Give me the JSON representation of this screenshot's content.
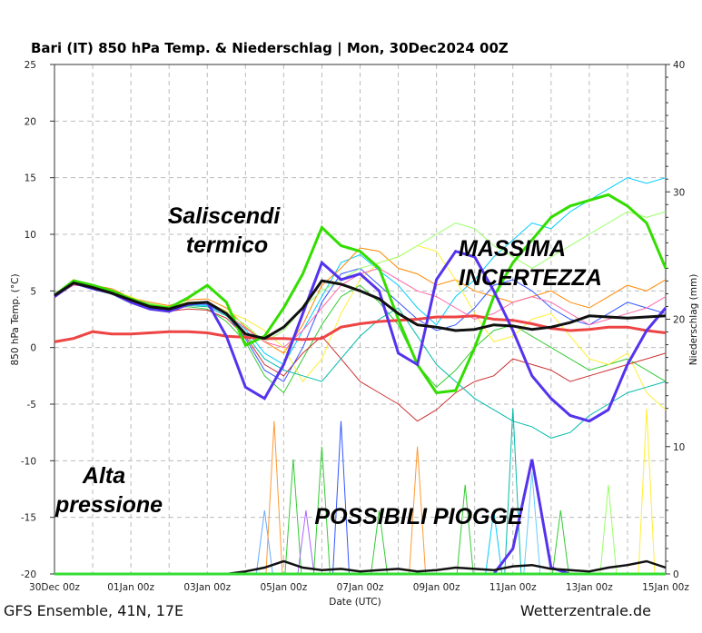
{
  "chart_data": {
    "type": "line",
    "title": "Bari  (IT)  850 hPa Temp. & Niederschlag | Mon, 30Dec2024 00Z",
    "xlabel": "Date (UTC)",
    "ylabel": "850 hPa Temp. (°C)",
    "y2label": "Niederschlag (mm)",
    "footer_left": "GFS Ensemble, 41N, 17E",
    "footer_right": "Wetterzentrale.de",
    "xlim": [
      0,
      384
    ],
    "ylim": [
      -20,
      25
    ],
    "y2lim": [
      0,
      40
    ],
    "x_ticks": [
      {
        "hour": 0,
        "label": "30Dec 00z"
      },
      {
        "hour": 48,
        "label": "01Jan 00z"
      },
      {
        "hour": 96,
        "label": "03Jan 00z"
      },
      {
        "hour": 144,
        "label": "05Jan 00z"
      },
      {
        "hour": 192,
        "label": "07Jan 00z"
      },
      {
        "hour": 240,
        "label": "09Jan 00z"
      },
      {
        "hour": 288,
        "label": "11Jan 00z"
      },
      {
        "hour": 336,
        "label": "13Jan 00z"
      },
      {
        "hour": 384,
        "label": "15Jan 00z"
      }
    ],
    "y_ticks": [
      25,
      20,
      15,
      10,
      5,
      0,
      -5,
      -10,
      -15,
      -20
    ],
    "y2_ticks": [
      40,
      30,
      20,
      10,
      0
    ],
    "x_hours": [
      0,
      12,
      24,
      36,
      48,
      60,
      72,
      84,
      96,
      108,
      120,
      132,
      144,
      156,
      168,
      180,
      192,
      204,
      216,
      228,
      240,
      252,
      264,
      276,
      288,
      300,
      312,
      324,
      336,
      348,
      360,
      372,
      384
    ],
    "ensemble_temperature": [
      {
        "color": "#00ccff",
        "values": [
          4.5,
          5.6,
          5.4,
          4.9,
          4.3,
          3.9,
          3.3,
          3.8,
          3.7,
          3.0,
          1.6,
          -0.5,
          -1.5,
          1.5,
          4.5,
          7.5,
          8.2,
          6.8,
          5.5,
          3.5,
          2.0,
          4.5,
          6.0,
          8.0,
          9.5,
          11.0,
          10.5,
          12.0,
          13.0,
          14.0,
          15.0,
          14.5,
          15.0
        ]
      },
      {
        "color": "#33cc33",
        "values": [
          4.6,
          5.8,
          5.3,
          4.7,
          4.1,
          3.6,
          3.5,
          3.6,
          3.4,
          2.3,
          0.5,
          -2.5,
          -4.0,
          -1.0,
          2.0,
          4.5,
          5.5,
          4.0,
          2.0,
          -1.5,
          -3.5,
          -2.0,
          0.0,
          1.5,
          2.0,
          1.0,
          0.0,
          -1.0,
          -2.0,
          -1.5,
          -1.0,
          -2.0,
          -3.0
        ]
      },
      {
        "color": "#ff8800",
        "values": [
          4.7,
          6.0,
          5.5,
          5.2,
          4.4,
          4.0,
          3.7,
          4.2,
          4.3,
          3.5,
          1.8,
          0.5,
          -0.5,
          2.0,
          5.5,
          7.0,
          8.8,
          8.5,
          7.0,
          6.5,
          5.5,
          6.0,
          5.0,
          4.5,
          4.0,
          4.5,
          5.0,
          4.0,
          3.5,
          4.5,
          5.5,
          5.0,
          6.0
        ]
      },
      {
        "color": "#ffee33",
        "values": [
          4.5,
          5.7,
          5.5,
          5.0,
          4.5,
          3.8,
          3.6,
          4.0,
          4.0,
          3.2,
          2.5,
          1.5,
          0.0,
          -3.0,
          -1.0,
          3.0,
          6.0,
          7.5,
          8.0,
          9.0,
          8.5,
          6.0,
          3.0,
          0.5,
          1.0,
          2.5,
          3.0,
          1.0,
          -1.0,
          -1.5,
          -0.5,
          -4.0,
          -5.5
        ]
      },
      {
        "color": "#cc3333",
        "values": [
          4.4,
          5.6,
          5.2,
          4.8,
          4.0,
          3.5,
          3.2,
          3.4,
          3.3,
          2.6,
          1.0,
          -1.5,
          -2.5,
          -0.5,
          1.0,
          -1.0,
          -3.0,
          -4.0,
          -5.0,
          -6.5,
          -5.5,
          -4.0,
          -3.0,
          -2.5,
          -1.0,
          -1.5,
          -2.0,
          -3.0,
          -2.5,
          -2.0,
          -1.5,
          -1.0,
          -0.5
        ]
      },
      {
        "color": "#3355ff",
        "values": [
          4.6,
          5.7,
          5.3,
          4.8,
          4.2,
          3.7,
          3.3,
          3.9,
          3.8,
          2.9,
          0.8,
          -2.0,
          -3.0,
          0.0,
          4.0,
          6.5,
          7.0,
          5.5,
          4.0,
          2.5,
          1.5,
          2.0,
          3.5,
          5.5,
          6.0,
          5.0,
          3.5,
          2.5,
          2.0,
          3.0,
          4.0,
          3.5,
          3.0
        ]
      },
      {
        "color": "#99ff66",
        "values": [
          4.5,
          5.8,
          5.4,
          5.0,
          4.3,
          3.9,
          3.6,
          3.9,
          3.9,
          3.1,
          2.0,
          0.5,
          1.5,
          3.5,
          5.0,
          6.0,
          7.0,
          7.5,
          8.0,
          9.0,
          10.0,
          11.0,
          10.5,
          9.0,
          8.0,
          7.0,
          8.0,
          9.0,
          10.0,
          11.0,
          12.0,
          11.5,
          12.0
        ]
      },
      {
        "color": "#00bbaa",
        "values": [
          4.5,
          5.7,
          5.2,
          4.9,
          4.2,
          3.7,
          3.4,
          3.7,
          3.6,
          2.8,
          1.2,
          -1.0,
          -2.0,
          -2.5,
          -3.0,
          -1.0,
          1.0,
          2.5,
          3.5,
          1.0,
          -1.5,
          -3.0,
          -4.5,
          -5.5,
          -6.5,
          -7.0,
          -8.0,
          -7.5,
          -6.0,
          -5.0,
          -4.0,
          -3.5,
          -3.0
        ]
      },
      {
        "color": "#ff66aa",
        "values": [
          4.5,
          5.5,
          5.4,
          5.0,
          4.1,
          3.6,
          3.5,
          3.8,
          3.9,
          3.0,
          1.7,
          0.5,
          0.0,
          1.5,
          3.5,
          5.5,
          6.5,
          7.0,
          6.0,
          5.0,
          4.5,
          3.5,
          2.5,
          3.0,
          4.0,
          4.5,
          4.0,
          3.0,
          2.0,
          2.5,
          3.0,
          3.5,
          4.5
        ]
      }
    ],
    "control_run": {
      "color": "#33dd00",
      "values": [
        4.6,
        5.9,
        5.5,
        5.0,
        4.3,
        3.7,
        3.5,
        4.4,
        5.5,
        4.0,
        0.2,
        1.0,
        3.5,
        6.5,
        10.6,
        9.0,
        8.5,
        7.0,
        2.5,
        -1.5,
        -4.0,
        -3.8,
        0.0,
        4.5,
        7.5,
        9.5,
        11.5,
        12.5,
        13.0,
        13.5,
        12.5,
        11.0,
        7.0
      ]
    },
    "operational_run": {
      "color": "#5533ee",
      "values": [
        4.5,
        5.7,
        5.2,
        4.8,
        4.0,
        3.4,
        3.2,
        3.8,
        4.0,
        1.0,
        -3.5,
        -4.5,
        -1.5,
        3.0,
        7.5,
        6.0,
        6.5,
        5.0,
        -0.5,
        -1.5,
        6.0,
        8.5,
        8.0,
        5.0,
        1.5,
        -2.5,
        -4.5,
        -6.0,
        -6.5,
        -5.5,
        -1.5,
        1.5,
        3.5
      ]
    },
    "ensemble_mean": {
      "color": "#111111",
      "values": [
        4.6,
        5.7,
        5.3,
        4.8,
        4.2,
        3.6,
        3.4,
        3.9,
        4.0,
        3.0,
        1.2,
        0.8,
        1.8,
        3.5,
        5.9,
        5.6,
        5.0,
        4.3,
        3.0,
        2.0,
        1.8,
        1.5,
        1.6,
        2.0,
        1.9,
        1.6,
        1.8,
        2.2,
        2.8,
        2.7,
        2.6,
        2.7,
        2.8
      ]
    },
    "climatology": {
      "color": "#ee4444",
      "values": [
        0.5,
        0.8,
        1.4,
        1.2,
        1.2,
        1.3,
        1.4,
        1.4,
        1.3,
        1.0,
        0.9,
        0.8,
        0.8,
        0.7,
        0.8,
        1.8,
        2.1,
        2.3,
        2.4,
        2.5,
        2.7,
        2.7,
        2.8,
        2.5,
        2.4,
        2.1,
        1.7,
        1.5,
        1.6,
        1.8,
        1.8,
        1.5,
        1.3
      ]
    },
    "precipitation_mean": {
      "color": "#111111",
      "values": [
        0,
        0,
        0,
        0,
        0,
        0,
        0,
        0,
        0,
        0,
        0.2,
        0.5,
        1.0,
        0.5,
        0.3,
        0.4,
        0.2,
        0.3,
        0.4,
        0.2,
        0.3,
        0.5,
        0.4,
        0.3,
        0.6,
        0.7,
        0.4,
        0.3,
        0.2,
        0.5,
        0.7,
        1.0,
        0.5
      ]
    },
    "precipitation_operational": {
      "color": "#5533ee",
      "values": [
        0,
        0,
        0,
        0,
        0,
        0,
        0,
        0,
        0,
        0,
        0,
        0,
        0,
        0,
        0,
        0,
        0,
        0,
        0,
        0,
        0,
        0,
        0,
        0,
        2.0,
        9.0,
        0.5,
        0,
        0,
        0,
        0,
        0,
        0
      ]
    },
    "precipitation_spikes": [
      {
        "hour": 132,
        "mm": 5,
        "color": "#66aaff"
      },
      {
        "hour": 138,
        "mm": 12,
        "color": "#ff9933"
      },
      {
        "hour": 150,
        "mm": 9,
        "color": "#33cc33"
      },
      {
        "hour": 158,
        "mm": 5,
        "color": "#aa66ff"
      },
      {
        "hour": 168,
        "mm": 10,
        "color": "#33cc33"
      },
      {
        "hour": 180,
        "mm": 12,
        "color": "#3355ff"
      },
      {
        "hour": 204,
        "mm": 5,
        "color": "#33cc33"
      },
      {
        "hour": 228,
        "mm": 10,
        "color": "#ff9933"
      },
      {
        "hour": 258,
        "mm": 7,
        "color": "#33cc33"
      },
      {
        "hour": 276,
        "mm": 5,
        "color": "#00ccff"
      },
      {
        "hour": 288,
        "mm": 13,
        "color": "#00bbaa"
      },
      {
        "hour": 300,
        "mm": 8,
        "color": "#66ccff"
      },
      {
        "hour": 318,
        "mm": 5,
        "color": "#33cc33"
      },
      {
        "hour": 348,
        "mm": 7,
        "color": "#99ff66"
      },
      {
        "hour": 372,
        "mm": 13,
        "color": "#ffee33"
      }
    ],
    "annotations": [
      {
        "id": "saliscendi",
        "lines": [
          "Saliscendi",
          "termico"
        ]
      },
      {
        "id": "massima",
        "lines": [
          "MASSIMA",
          "INCERTEZZA"
        ]
      },
      {
        "id": "alta",
        "lines": [
          "Alta",
          "pressione"
        ]
      },
      {
        "id": "piogge",
        "lines": [
          "POSSIBILI PIOGGE"
        ]
      }
    ]
  }
}
